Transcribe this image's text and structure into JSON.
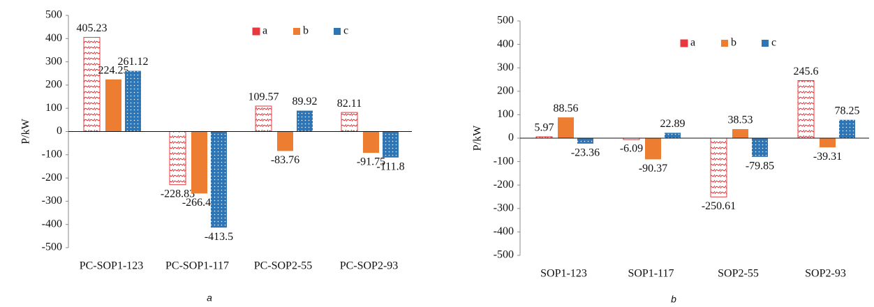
{
  "chart_data": [
    {
      "type": "bar",
      "caption": "a",
      "ylabel": "P/kW",
      "categories": [
        "PC-SOP1-123",
        "PC-SOP1-117",
        "PC-SOP2-55",
        "PC-SOP2-93"
      ],
      "series": [
        {
          "name": "a",
          "color": "#e8383d",
          "values": [
            405.23,
            -228.83,
            109.57,
            82.11
          ]
        },
        {
          "name": "b",
          "color": "#ed7d31",
          "values": [
            224.25,
            -266.45,
            -83.76,
            -91.75
          ]
        },
        {
          "name": "c",
          "color": "#2e75b6",
          "values": [
            261.12,
            -413.5,
            89.92,
            -111.8
          ]
        }
      ],
      "ylim": [
        -500,
        500
      ],
      "yticks": [
        -500,
        -400,
        -300,
        -200,
        -100,
        0,
        100,
        200,
        300,
        400,
        500
      ],
      "grid": false,
      "legend": "upper right"
    },
    {
      "type": "bar",
      "caption": "b",
      "ylabel": "P/kW",
      "categories": [
        "SOP1-123",
        "SOP1-117",
        "SOP2-55",
        "SOP2-93"
      ],
      "series": [
        {
          "name": "a",
          "color": "#e8383d",
          "values": [
            5.97,
            -6.09,
            -250.61,
            245.6
          ]
        },
        {
          "name": "b",
          "color": "#ed7d31",
          "values": [
            88.56,
            -90.37,
            38.53,
            -39.31
          ]
        },
        {
          "name": "c",
          "color": "#2e75b6",
          "values": [
            -23.36,
            22.89,
            -79.85,
            78.25
          ]
        }
      ],
      "ylim": [
        -500,
        500
      ],
      "yticks": [
        -500,
        -400,
        -300,
        -200,
        -100,
        0,
        100,
        200,
        300,
        400,
        500
      ],
      "grid": false,
      "legend": "upper right"
    }
  ]
}
